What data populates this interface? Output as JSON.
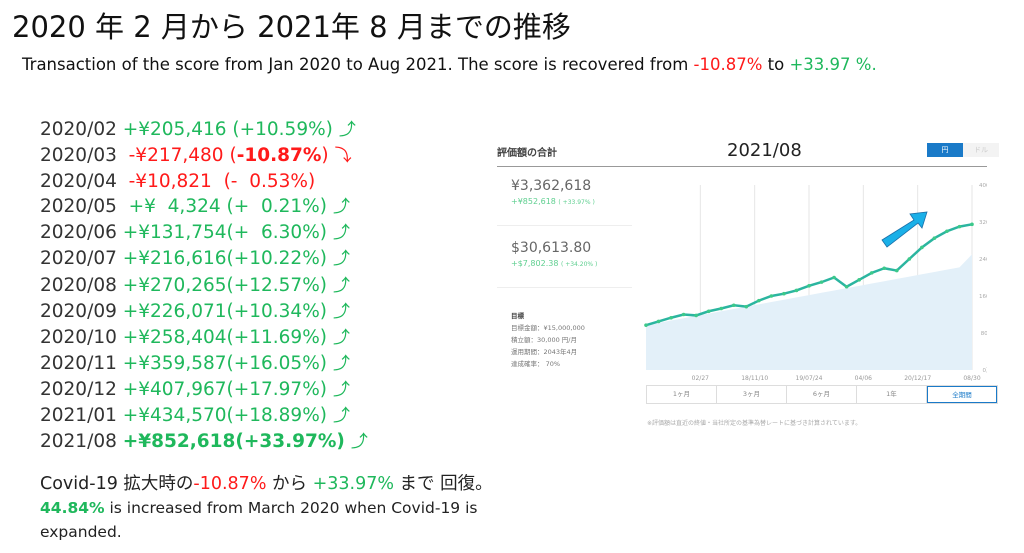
{
  "title": "2020 年 2 月から 2021年 8 月までの推移",
  "subtitle": {
    "prefix": "Transaction of the score from Jan 2020 to Aug 2021. The score is recovered from ",
    "low": "-10.87%",
    "mid": " to ",
    "high": "+33.97 %."
  },
  "rows": [
    {
      "date": "2020/02",
      "amount": "+¥205,416 (+10.59%)",
      "trend": "up"
    },
    {
      "date": "2020/03",
      "amount": " -¥217,480 (",
      "bold": "-10.87%",
      "tail": ")",
      "trend": "down"
    },
    {
      "date": "2020/04",
      "amount": " -¥10,821  (-  0.53%)",
      "trend": "none"
    },
    {
      "date": "2020/05",
      "amount": " +¥  4,324 (+  0.21%)",
      "trend": "up"
    },
    {
      "date": "2020/06",
      "amount": "+¥131,754(+  6.30%)",
      "trend": "up"
    },
    {
      "date": "2020/07",
      "amount": "+¥216,616(+10.22%)",
      "trend": "up"
    },
    {
      "date": "2020/08",
      "amount": "+¥270,265(+12.57%)",
      "trend": "up"
    },
    {
      "date": "2020/09",
      "amount": "+¥226,071(+10.34%)",
      "trend": "up"
    },
    {
      "date": "2020/10",
      "amount": "+¥258,404(+11.69%)",
      "trend": "up"
    },
    {
      "date": "2020/11",
      "amount": "+¥359,587(+16.05%)",
      "trend": "up"
    },
    {
      "date": "2020/12",
      "amount": "+¥407,967(+17.97%)",
      "trend": "up"
    },
    {
      "date": "2021/01",
      "amount": "+¥434,570(+18.89%)",
      "trend": "up"
    },
    {
      "date": "2021/08",
      "amount": "+¥852,618(+33.97%)",
      "trend": "up",
      "strong": true
    }
  ],
  "arrows": {
    "up": "⤴",
    "down": "⤵"
  },
  "summary": {
    "prefix": "Covid-19 拡大時の",
    "low": "-10.87%",
    "mid": " から ",
    "high": "+33.97%",
    "suffix": " まで 回復。"
  },
  "summary2": {
    "bold": "44.84%",
    "text": " is increased from March 2020 when Covid-19 is expanded."
  },
  "panel": {
    "title": "評価額の合計",
    "date": "2021/08",
    "currency_options": [
      "円",
      "ドル"
    ],
    "yen_total": "¥3,362,618",
    "yen_gain": "+¥852,618",
    "yen_gain_pct": "( +33.97% )",
    "usd_total": "$30,613.80",
    "usd_gain": "+$7,802.38",
    "usd_gain_pct": "( +34.20% )",
    "goal": {
      "heading": "目標",
      "lines": [
        "目標金額：¥15,000,000",
        "積立額：30,000 円/月",
        "運用期間：2043年4月",
        "達成確率： 70%"
      ]
    },
    "periods": [
      "1ヶ月",
      "3ヶ月",
      "6ヶ月",
      "1年",
      "全期間"
    ],
    "active_period": "全期間",
    "footnote": "※評価額は直近の終値・当社所定の基準為替レートに基づき計算されています。",
    "colors": {
      "accent": "#1a7ac8",
      "line": "#2bb5a0",
      "area": "#e3f0f9",
      "arrow": "#1ab0e8"
    }
  },
  "chart_data": {
    "type": "area",
    "x_tick_labels": [
      "02/27",
      "18/11/10",
      "19/07/24",
      "04/06",
      "20/12/17",
      "08/30"
    ],
    "y_tick_labels": [
      "0万",
      "80万",
      "160万",
      "240万",
      "320万",
      "400万"
    ],
    "ylim": [
      0,
      400
    ],
    "series": [
      {
        "values": [
          97,
          105,
          113,
          120,
          118,
          127,
          133,
          140,
          137,
          150,
          160,
          165,
          172,
          182,
          190,
          200,
          180,
          195,
          210,
          220,
          215,
          240,
          265,
          285,
          300,
          310,
          315
        ]
      },
      {
        "values": [
          97,
          102,
          107,
          112,
          117,
          122,
          127,
          132,
          137,
          142,
          147,
          152,
          157,
          162,
          167,
          172,
          177,
          182,
          187,
          192,
          197,
          202,
          207,
          212,
          217,
          222,
          250
        ]
      }
    ]
  }
}
